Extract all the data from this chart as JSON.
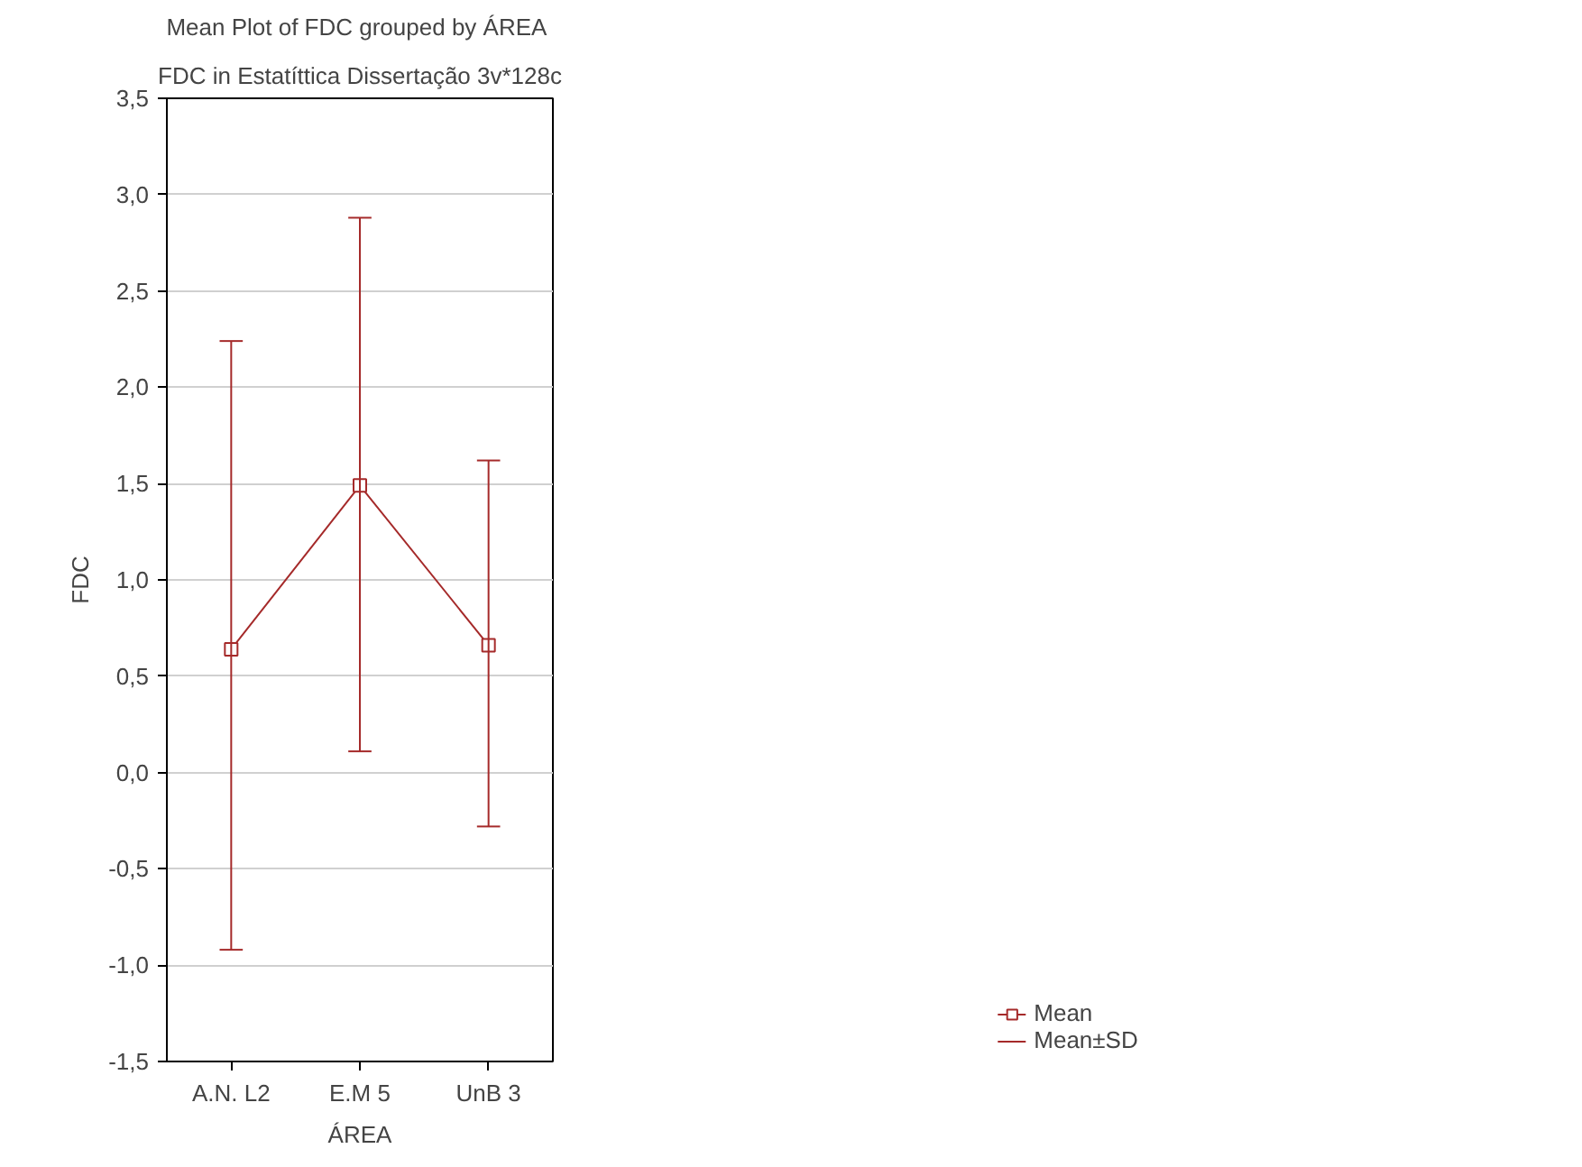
{
  "chart_data": {
    "type": "line",
    "title": "Mean Plot of FDC grouped by  ÁREA",
    "subtitle": "FDC in Estatíttica Dissertação 3v*128c",
    "xlabel": "ÁREA",
    "ylabel": "FDC",
    "categories": [
      "A.N. L2",
      "E.M 5",
      "UnB 3"
    ],
    "series": [
      {
        "name": "Mean",
        "color": "#a52a2a",
        "values": [
          0.64,
          1.49,
          0.66
        ],
        "errors": [
          [
            -0.92,
            2.24
          ],
          [
            0.11,
            2.88
          ],
          [
            -0.28,
            1.62
          ]
        ]
      }
    ],
    "annotations": [
      "Mean±SD"
    ],
    "ylim": [
      -1.5,
      3.5
    ],
    "yticks": [
      {
        "value": -1.5,
        "label": "-1,5"
      },
      {
        "value": -1.0,
        "label": "-1,0"
      },
      {
        "value": -0.5,
        "label": "-0,5"
      },
      {
        "value": 0.0,
        "label": "0,0"
      },
      {
        "value": 0.5,
        "label": "0,5"
      },
      {
        "value": 1.0,
        "label": "1,0"
      },
      {
        "value": 1.5,
        "label": "1,5"
      },
      {
        "value": 2.0,
        "label": "2,0"
      },
      {
        "value": 2.5,
        "label": "2,5"
      },
      {
        "value": 3.0,
        "label": "3,0"
      },
      {
        "value": 3.5,
        "label": "3,5"
      }
    ],
    "grid": "y",
    "legend": "bottom right",
    "marker": "square",
    "line_style": "solid"
  }
}
